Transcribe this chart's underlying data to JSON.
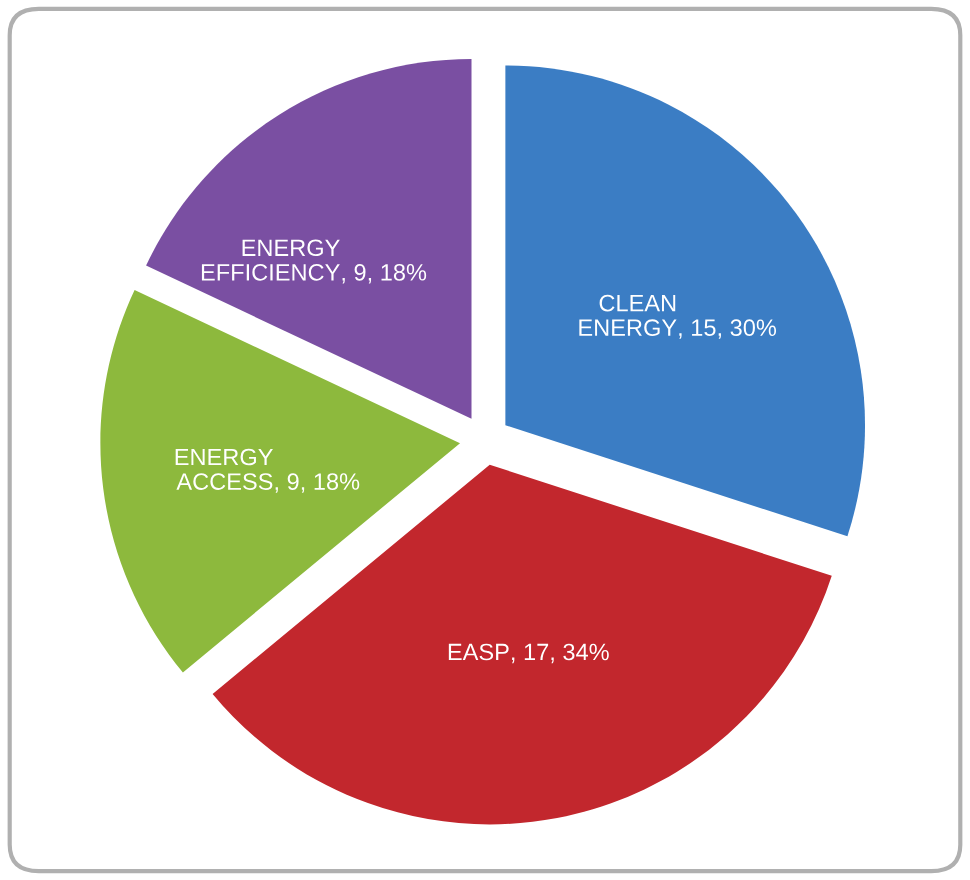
{
  "chart_data": {
    "type": "pie",
    "categories": [
      "CLEAN ENERGY",
      "EASP",
      "ENERGY ACCESS",
      "ENERGY EFFICIENCY"
    ],
    "values": [
      15,
      17,
      9,
      9
    ],
    "value_labels": [
      ", 15, 30%",
      ", 17, 34%",
      ", 9, 18%",
      ", 9, 18%"
    ],
    "colors": [
      "#3b7dc4",
      "#c2272d",
      "#8db93d",
      "#7a4fa2"
    ],
    "legend": false
  }
}
